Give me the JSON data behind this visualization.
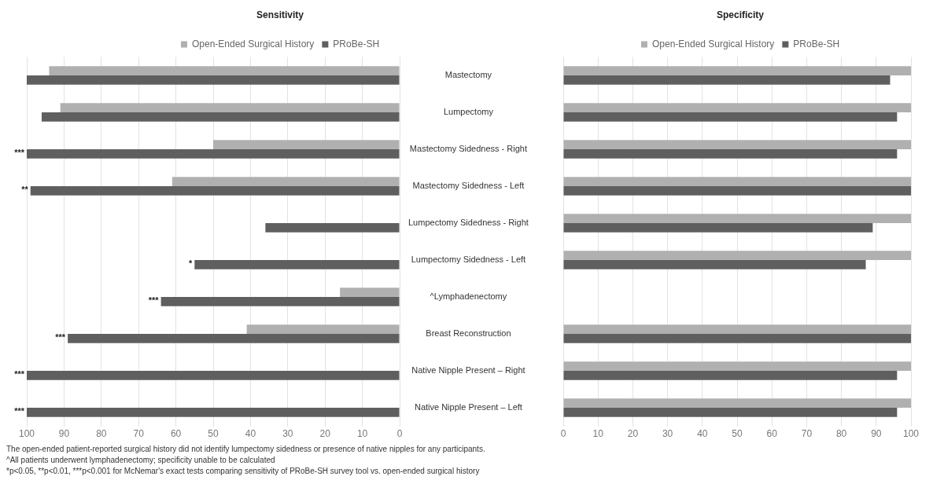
{
  "chart_data": [
    {
      "type": "bar",
      "title": "Sensitivity",
      "orientation": "horizontal",
      "legend": "top",
      "grid": "x",
      "categories": [
        "Mastectomy",
        "Lumpectomy",
        "Mastectomy Sidedness - Right",
        "Mastectomy Sidedness - Left",
        "Lumpectomy Sidedness - Right",
        "Lumpectomy Sidedness - Left",
        "^Lymphadenectomy",
        "Breast Reconstruction",
        "Native Nipple Present – Right",
        "Native Nipple Present – Left"
      ],
      "series": [
        {
          "name": "Open-Ended Surgical History",
          "color": "#b0b0b0",
          "values": [
            94,
            91,
            50,
            61,
            0,
            0,
            16,
            41,
            0,
            0
          ]
        },
        {
          "name": "PRoBe-SH",
          "color": "#5f5f5f",
          "values": [
            100,
            96,
            100,
            99,
            36,
            55,
            64,
            89,
            100,
            100
          ]
        }
      ],
      "xlim": [
        100,
        0
      ],
      "xticks": [
        100,
        90,
        80,
        70,
        60,
        50,
        40,
        30,
        20,
        10,
        0
      ],
      "annotations": [
        {
          "text": "***",
          "x": 100,
          "y": "Mastectomy Sidedness - Right"
        },
        {
          "text": "**",
          "x": 99,
          "y": "Mastectomy Sidedness - Left"
        },
        {
          "text": "*",
          "x": 55,
          "y": "Lumpectomy Sidedness - Left"
        },
        {
          "text": "***",
          "x": 64,
          "y": "^Lymphadenectomy"
        },
        {
          "text": "***",
          "x": 89,
          "y": "Breast Reconstruction"
        },
        {
          "text": "***",
          "x": 100,
          "y": "Native Nipple Present – Right"
        },
        {
          "text": "***",
          "x": 100,
          "y": "Native Nipple Present – Left"
        },
        "The open-ended patient-reported surgical history did not identify lumpectomy sidedness or presence of native nipples for any participants.",
        "^All patients underwent lymphadenectomy; specificity unable to be calculated",
        "*p<0.05, **p<0.01, ***p<0.001 for McNemar's exact tests comparing sensitivity of PRoBe-SH survey tool vs. open-ended surgical history"
      ]
    },
    {
      "type": "bar",
      "title": "Specificity",
      "orientation": "horizontal",
      "legend": "top",
      "grid": "x",
      "tick_labels": "x",
      "categories": [
        "Mastectomy",
        "Lumpectomy",
        "Mastectomy Sidedness - Right",
        "Mastectomy Sidedness - Left",
        "Lumpectomy Sidedness - Right",
        "Lumpectomy Sidedness - Left",
        "^Lymphadenectomy",
        "Breast Reconstruction",
        "Native Nipple Present – Right",
        "Native Nipple Present – Left"
      ],
      "series": [
        {
          "name": "Open-Ended Surgical History",
          "color": "#b0b0b0",
          "values": [
            100,
            100,
            100,
            100,
            100,
            100,
            null,
            100,
            100,
            100
          ]
        },
        {
          "name": "PRoBe-SH",
          "color": "#5f5f5f",
          "values": [
            94,
            96,
            96,
            100,
            89,
            87,
            null,
            100,
            96,
            96
          ]
        }
      ],
      "xlim": [
        0,
        100
      ],
      "xticks": [
        0,
        10,
        20,
        30,
        40,
        50,
        60,
        70,
        80,
        90,
        100
      ]
    }
  ]
}
